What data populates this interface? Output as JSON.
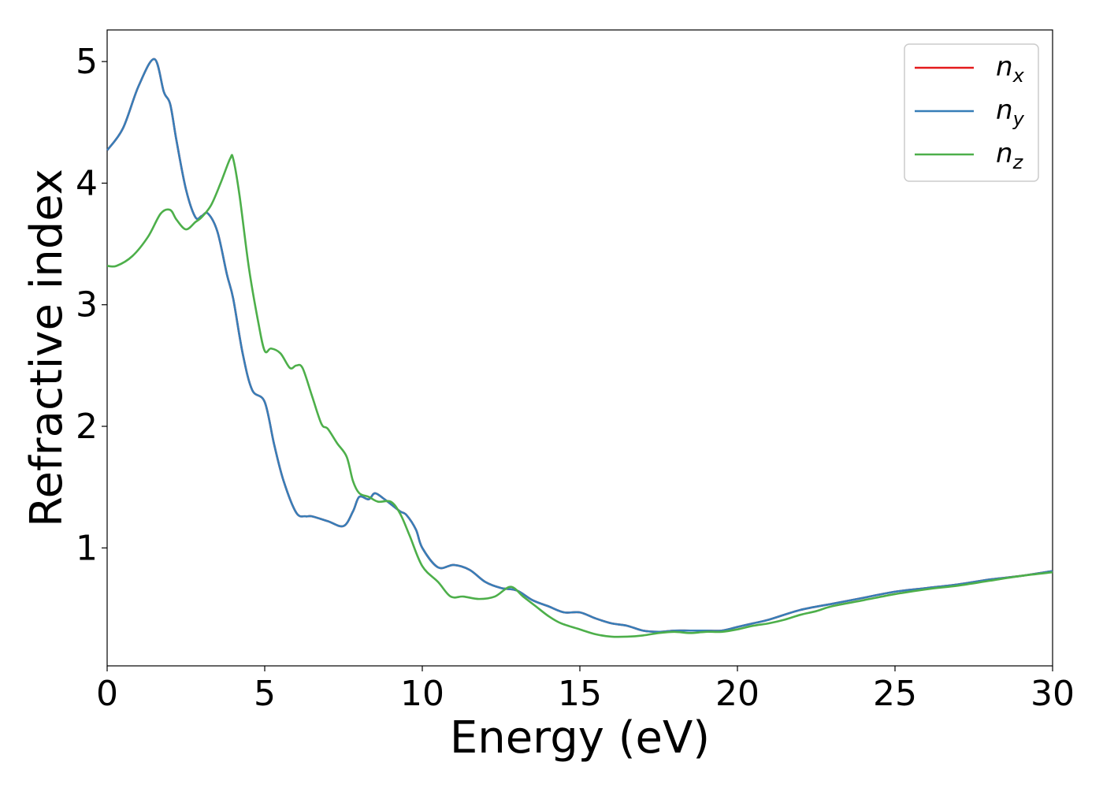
{
  "chart_data": {
    "type": "line",
    "xlabel": "Energy (eV)",
    "ylabel": "Refractive index",
    "xlim": [
      0,
      30
    ],
    "ylim": [
      0.03,
      5.26
    ],
    "xticks": [
      0,
      5,
      10,
      15,
      20,
      25,
      30
    ],
    "xtick_labels": [
      "0",
      "5",
      "10",
      "15",
      "20",
      "25",
      "30"
    ],
    "yticks": [
      1,
      2,
      3,
      4,
      5
    ],
    "ytick_labels": [
      "1",
      "2",
      "3",
      "4",
      "5"
    ],
    "grid": false,
    "legend_position": "top-right",
    "series": [
      {
        "name": "n_x",
        "label_main": "n",
        "label_sub": "x",
        "color": "#e41a1c",
        "x": [
          0,
          0.5,
          1.0,
          1.5,
          1.8,
          2.0,
          2.2,
          2.5,
          2.8,
          3.0,
          3.2,
          3.5,
          3.8,
          4.0,
          4.3,
          4.6,
          5.0,
          5.3,
          5.6,
          6.0,
          6.3,
          6.5,
          7.0,
          7.5,
          7.8,
          8.0,
          8.3,
          8.5,
          8.8,
          9.0,
          9.3,
          9.5,
          9.8,
          10.0,
          10.5,
          11.0,
          11.5,
          12.0,
          12.5,
          13.0,
          13.5,
          14.0,
          14.5,
          15.0,
          15.5,
          16.0,
          16.5,
          17.0,
          17.5,
          18.0,
          18.5,
          19.0,
          19.5,
          20.0,
          20.5,
          21.0,
          22.0,
          23.0,
          24.0,
          25.0,
          26.0,
          27.0,
          28.0,
          29.0,
          30.0
        ],
        "y": [
          4.27,
          4.45,
          4.8,
          5.02,
          4.75,
          4.65,
          4.35,
          3.95,
          3.72,
          3.73,
          3.75,
          3.6,
          3.25,
          3.05,
          2.6,
          2.3,
          2.2,
          1.85,
          1.55,
          1.29,
          1.26,
          1.26,
          1.22,
          1.18,
          1.3,
          1.42,
          1.4,
          1.45,
          1.4,
          1.36,
          1.3,
          1.27,
          1.15,
          1.0,
          0.84,
          0.86,
          0.82,
          0.72,
          0.67,
          0.65,
          0.57,
          0.52,
          0.47,
          0.47,
          0.42,
          0.38,
          0.36,
          0.32,
          0.31,
          0.32,
          0.32,
          0.32,
          0.32,
          0.35,
          0.38,
          0.41,
          0.49,
          0.54,
          0.59,
          0.64,
          0.67,
          0.7,
          0.74,
          0.77,
          0.81
        ]
      },
      {
        "name": "n_y",
        "label_main": "n",
        "label_sub": "y",
        "color": "#377eb8",
        "x": [
          0,
          0.5,
          1.0,
          1.5,
          1.8,
          2.0,
          2.2,
          2.5,
          2.8,
          3.0,
          3.2,
          3.5,
          3.8,
          4.0,
          4.3,
          4.6,
          5.0,
          5.3,
          5.6,
          6.0,
          6.3,
          6.5,
          7.0,
          7.5,
          7.8,
          8.0,
          8.3,
          8.5,
          8.8,
          9.0,
          9.3,
          9.5,
          9.8,
          10.0,
          10.5,
          11.0,
          11.5,
          12.0,
          12.5,
          13.0,
          13.5,
          14.0,
          14.5,
          15.0,
          15.5,
          16.0,
          16.5,
          17.0,
          17.5,
          18.0,
          18.5,
          19.0,
          19.5,
          20.0,
          20.5,
          21.0,
          22.0,
          23.0,
          24.0,
          25.0,
          26.0,
          27.0,
          28.0,
          29.0,
          30.0
        ],
        "y": [
          4.27,
          4.45,
          4.8,
          5.02,
          4.75,
          4.65,
          4.35,
          3.95,
          3.72,
          3.73,
          3.75,
          3.6,
          3.25,
          3.05,
          2.6,
          2.3,
          2.2,
          1.85,
          1.55,
          1.29,
          1.26,
          1.26,
          1.22,
          1.18,
          1.3,
          1.42,
          1.4,
          1.45,
          1.4,
          1.36,
          1.3,
          1.27,
          1.15,
          1.0,
          0.84,
          0.86,
          0.82,
          0.72,
          0.67,
          0.65,
          0.57,
          0.52,
          0.47,
          0.47,
          0.42,
          0.38,
          0.36,
          0.32,
          0.31,
          0.32,
          0.32,
          0.32,
          0.32,
          0.35,
          0.38,
          0.41,
          0.49,
          0.54,
          0.59,
          0.64,
          0.67,
          0.7,
          0.74,
          0.77,
          0.81
        ]
      },
      {
        "name": "n_z",
        "label_main": "n",
        "label_sub": "z",
        "color": "#4daf4a",
        "x": [
          0,
          0.3,
          0.8,
          1.3,
          1.7,
          2.0,
          2.2,
          2.5,
          2.8,
          3.0,
          3.3,
          3.6,
          3.9,
          4.0,
          4.2,
          4.5,
          4.8,
          5.0,
          5.2,
          5.5,
          5.8,
          6.0,
          6.2,
          6.5,
          6.8,
          7.0,
          7.3,
          7.6,
          7.8,
          8.0,
          8.3,
          8.6,
          9.0,
          9.3,
          9.6,
          10.0,
          10.5,
          10.9,
          11.3,
          11.8,
          12.3,
          12.8,
          13.2,
          13.6,
          14.0,
          14.4,
          15.0,
          15.5,
          16.0,
          16.5,
          17.0,
          17.5,
          18.0,
          18.5,
          19.0,
          19.5,
          20.0,
          20.5,
          21.0,
          21.5,
          22.0,
          22.5,
          23.0,
          24.0,
          25.0,
          26.0,
          27.0,
          28.0,
          29.0,
          30.0
        ],
        "y": [
          3.32,
          3.32,
          3.4,
          3.56,
          3.75,
          3.78,
          3.7,
          3.62,
          3.68,
          3.72,
          3.82,
          4.0,
          4.2,
          4.2,
          3.9,
          3.3,
          2.85,
          2.62,
          2.64,
          2.6,
          2.48,
          2.5,
          2.48,
          2.25,
          2.02,
          1.98,
          1.86,
          1.75,
          1.55,
          1.45,
          1.42,
          1.38,
          1.38,
          1.28,
          1.1,
          0.85,
          0.72,
          0.6,
          0.6,
          0.58,
          0.6,
          0.68,
          0.6,
          0.52,
          0.44,
          0.38,
          0.33,
          0.29,
          0.27,
          0.27,
          0.28,
          0.3,
          0.31,
          0.3,
          0.31,
          0.31,
          0.33,
          0.36,
          0.38,
          0.41,
          0.45,
          0.48,
          0.52,
          0.57,
          0.62,
          0.66,
          0.69,
          0.73,
          0.77,
          0.8
        ]
      }
    ]
  }
}
